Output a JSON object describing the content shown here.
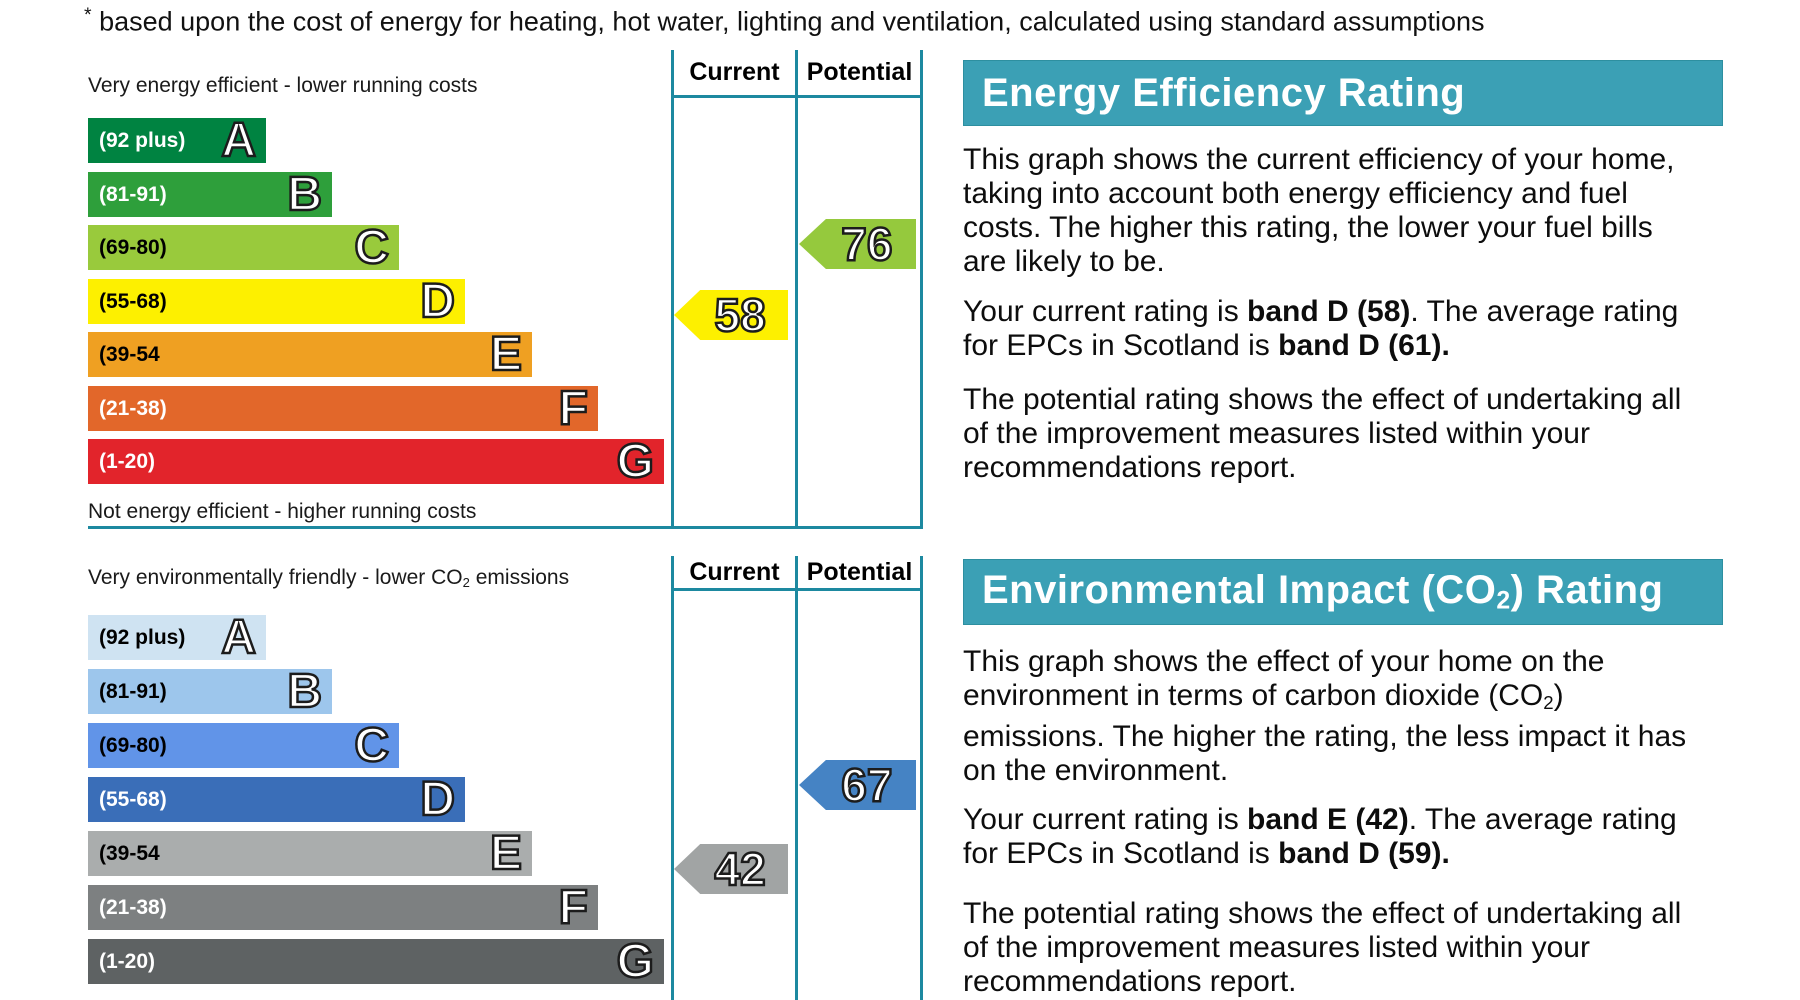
{
  "note": {
    "segments": [
      {
        "t": "*",
        "sup": true
      },
      {
        "t": " based upon the cost of energy for heating, hot water, lighting and ventilation, calculated using standard assumptions"
      }
    ]
  },
  "table_headers": {
    "current": "Current",
    "potential": "Potential"
  },
  "colors": {
    "teal_line": "#1d89a0",
    "header_bg": "#3ba0b5"
  },
  "eer": {
    "caption_top": {
      "segments": [
        {
          "t": "Very energy efficient - lower running costs"
        }
      ]
    },
    "caption_bottom": {
      "segments": [
        {
          "t": "Not energy efficient - higher running costs"
        }
      ]
    },
    "bands": [
      {
        "letter": "A",
        "range": "(92 plus)",
        "bg": "#008341",
        "label_color": "#ffffff"
      },
      {
        "letter": "B",
        "range": "(81-91)",
        "bg": "#2e9f3b",
        "label_color": "#ffffff"
      },
      {
        "letter": "C",
        "range": "(69-80)",
        "bg": "#99ca3c",
        "label_color": "#000000"
      },
      {
        "letter": "D",
        "range": "(55-68)",
        "bg": "#fdf000",
        "label_color": "#000000"
      },
      {
        "letter": "E",
        "range": "(39-54",
        "bg": "#efa022",
        "label_color": "#000000"
      },
      {
        "letter": "F",
        "range": "(21-38)",
        "bg": "#e2672a",
        "label_color": "#ffffff"
      },
      {
        "letter": "G",
        "range": "(1-20)",
        "bg": "#e2242b",
        "label_color": "#ffffff"
      }
    ],
    "current": {
      "value": "58",
      "bg": "#fdf000"
    },
    "potential": {
      "value": "76",
      "bg": "#95c93d"
    }
  },
  "eir": {
    "caption_top": {
      "segments": [
        {
          "t": "Very environmentally friendly - lower CO"
        },
        {
          "t": "2",
          "sub": true
        },
        {
          "t": " emissions"
        }
      ]
    },
    "bands": [
      {
        "letter": "A",
        "range": "(92 plus)",
        "bg": "#cfe3f2",
        "label_color": "#000000"
      },
      {
        "letter": "B",
        "range": "(81-91)",
        "bg": "#9dc6ec",
        "label_color": "#000000"
      },
      {
        "letter": "C",
        "range": "(69-80)",
        "bg": "#6194e8",
        "label_color": "#000000"
      },
      {
        "letter": "D",
        "range": "(55-68)",
        "bg": "#3a6eb8",
        "label_color": "#ffffff"
      },
      {
        "letter": "E",
        "range": "(39-54",
        "bg": "#aaadad",
        "label_color": "#000000"
      },
      {
        "letter": "F",
        "range": "(21-38)",
        "bg": "#7d8081",
        "label_color": "#ffffff"
      },
      {
        "letter": "G",
        "range": "(1-20)",
        "bg": "#5e6263",
        "label_color": "#ffffff"
      }
    ],
    "current": {
      "value": "42",
      "bg": "#a1a4a4"
    },
    "potential": {
      "value": "67",
      "bg": "#4583c4"
    }
  },
  "panels": [
    {
      "title": {
        "segments": [
          {
            "t": "Energy Efficiency Rating"
          }
        ]
      },
      "paragraphs": [
        {
          "segments": [
            {
              "t": "This graph shows the current efficiency of your home,\ntaking into account both energy efficiency and fuel\ncosts. The higher this rating, the lower your fuel bills\nare likely to be."
            }
          ]
        },
        {
          "segments": [
            {
              "t": "Your current rating is "
            },
            {
              "t": "band D (58)",
              "b": true
            },
            {
              "t": ". The average rating\nfor EPCs in Scotland is "
            },
            {
              "t": "band D (61).",
              "b": true
            }
          ]
        },
        {
          "segments": [
            {
              "t": "The potential rating shows the effect of undertaking all\nof the improvement measures listed within your\nrecommendations report."
            }
          ]
        }
      ]
    },
    {
      "title": {
        "segments": [
          {
            "t": "Environmental Impact (CO"
          },
          {
            "t": "2",
            "sub": true
          },
          {
            "t": ") Rating"
          }
        ]
      },
      "paragraphs": [
        {
          "segments": [
            {
              "t": "This graph shows the effect of your home on the\nenvironment in terms of carbon dioxide (CO"
            },
            {
              "t": "2",
              "sub": true
            },
            {
              "t": ")\nemissions. The higher the rating, the less impact it has\non the environment."
            }
          ]
        },
        {
          "segments": [
            {
              "t": "Your current rating is "
            },
            {
              "t": "band E (42)",
              "b": true
            },
            {
              "t": ". The average rating\nfor EPCs in Scotland is "
            },
            {
              "t": "band D (59).",
              "b": true
            }
          ]
        },
        {
          "segments": [
            {
              "t": "The potential rating shows the effect of undertaking all\nof the improvement measures listed within your\nrecommendations report."
            }
          ]
        }
      ]
    }
  ],
  "chart_data": [
    {
      "type": "bar",
      "title": "Energy Efficiency Rating",
      "categories": [
        "A (92 plus)",
        "B (81-91)",
        "C (69-80)",
        "D (55-68)",
        "E (39-54)",
        "F (21-38)",
        "G (1-20)"
      ],
      "band_colors": [
        "#008341",
        "#2e9f3b",
        "#99ca3c",
        "#fdf000",
        "#efa022",
        "#e2672a",
        "#e2242b"
      ],
      "current_rating": 58,
      "current_band": "D",
      "potential_rating": 76,
      "potential_band": "C",
      "scotland_average": 61,
      "scotland_average_band": "D",
      "columns": [
        "Current",
        "Potential"
      ]
    },
    {
      "type": "bar",
      "title": "Environmental Impact (CO2) Rating",
      "categories": [
        "A (92 plus)",
        "B (81-91)",
        "C (69-80)",
        "D (55-68)",
        "E (39-54)",
        "F (21-38)",
        "G (1-20)"
      ],
      "band_colors": [
        "#cfe3f2",
        "#9dc6ec",
        "#6194e8",
        "#3a6eb8",
        "#aaadad",
        "#7d8081",
        "#5e6263"
      ],
      "current_rating": 42,
      "current_band": "E",
      "potential_rating": 67,
      "potential_band": "D",
      "scotland_average": 59,
      "scotland_average_band": "D",
      "columns": [
        "Current",
        "Potential"
      ]
    }
  ]
}
